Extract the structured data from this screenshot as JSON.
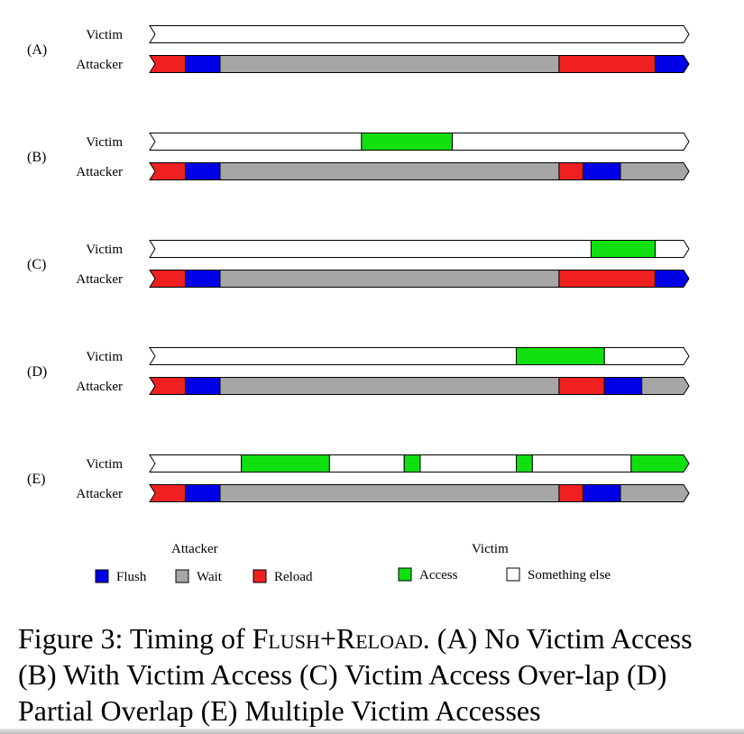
{
  "colors": {
    "flush": "#0000e6",
    "wait": "#a6a6a6",
    "reload": "#f02020",
    "access": "#10e010",
    "something_else": "#ffffff"
  },
  "row_labels": {
    "victim": "Victim",
    "attacker": "Attacker"
  },
  "timeline_length": 100,
  "diagrams": [
    {
      "id": "A",
      "label": "(A)",
      "victim": [
        {
          "kind": "something_else",
          "start": 0,
          "end": 100
        }
      ],
      "attacker": [
        {
          "kind": "reload",
          "start": 0,
          "end": 6
        },
        {
          "kind": "flush",
          "start": 6,
          "end": 12.5
        },
        {
          "kind": "wait",
          "start": 12.5,
          "end": 76
        },
        {
          "kind": "reload",
          "start": 76,
          "end": 94
        },
        {
          "kind": "flush",
          "start": 94,
          "end": 100
        }
      ]
    },
    {
      "id": "B",
      "label": "(B)",
      "victim": [
        {
          "kind": "something_else",
          "start": 0,
          "end": 39
        },
        {
          "kind": "access",
          "start": 39,
          "end": 56
        },
        {
          "kind": "something_else",
          "start": 56,
          "end": 100
        }
      ],
      "attacker": [
        {
          "kind": "reload",
          "start": 0,
          "end": 6
        },
        {
          "kind": "flush",
          "start": 6,
          "end": 12.5
        },
        {
          "kind": "wait",
          "start": 12.5,
          "end": 76
        },
        {
          "kind": "reload",
          "start": 76,
          "end": 80.5
        },
        {
          "kind": "flush",
          "start": 80.5,
          "end": 87.5
        },
        {
          "kind": "wait",
          "start": 87.5,
          "end": 100
        }
      ]
    },
    {
      "id": "C",
      "label": "(C)",
      "victim": [
        {
          "kind": "something_else",
          "start": 0,
          "end": 82
        },
        {
          "kind": "access",
          "start": 82,
          "end": 94
        },
        {
          "kind": "something_else",
          "start": 94,
          "end": 100
        }
      ],
      "attacker": [
        {
          "kind": "reload",
          "start": 0,
          "end": 6
        },
        {
          "kind": "flush",
          "start": 6,
          "end": 12.5
        },
        {
          "kind": "wait",
          "start": 12.5,
          "end": 76
        },
        {
          "kind": "reload",
          "start": 76,
          "end": 94
        },
        {
          "kind": "flush",
          "start": 94,
          "end": 100
        }
      ]
    },
    {
      "id": "D",
      "label": "(D)",
      "victim": [
        {
          "kind": "something_else",
          "start": 0,
          "end": 68
        },
        {
          "kind": "access",
          "start": 68,
          "end": 84.5
        },
        {
          "kind": "something_else",
          "start": 84.5,
          "end": 100
        }
      ],
      "attacker": [
        {
          "kind": "reload",
          "start": 0,
          "end": 6
        },
        {
          "kind": "flush",
          "start": 6,
          "end": 12.5
        },
        {
          "kind": "wait",
          "start": 12.5,
          "end": 76
        },
        {
          "kind": "reload",
          "start": 76,
          "end": 84.5
        },
        {
          "kind": "flush",
          "start": 84.5,
          "end": 91.5
        },
        {
          "kind": "wait",
          "start": 91.5,
          "end": 100
        }
      ]
    },
    {
      "id": "E",
      "label": "(E)",
      "victim": [
        {
          "kind": "something_else",
          "start": 0,
          "end": 16.5
        },
        {
          "kind": "access",
          "start": 16.5,
          "end": 33
        },
        {
          "kind": "something_else",
          "start": 33,
          "end": 47
        },
        {
          "kind": "access",
          "start": 47,
          "end": 50
        },
        {
          "kind": "something_else",
          "start": 50,
          "end": 68
        },
        {
          "kind": "access",
          "start": 68,
          "end": 71
        },
        {
          "kind": "something_else",
          "start": 71,
          "end": 89.5
        },
        {
          "kind": "access",
          "start": 89.5,
          "end": 100
        }
      ],
      "attacker": [
        {
          "kind": "reload",
          "start": 0,
          "end": 6
        },
        {
          "kind": "flush",
          "start": 6,
          "end": 12.5
        },
        {
          "kind": "wait",
          "start": 12.5,
          "end": 76
        },
        {
          "kind": "reload",
          "start": 76,
          "end": 80.5
        },
        {
          "kind": "flush",
          "start": 80.5,
          "end": 87.5
        },
        {
          "kind": "wait",
          "start": 87.5,
          "end": 100
        }
      ]
    }
  ],
  "legend": {
    "attacker_title": "Attacker",
    "victim_title": "Victim",
    "attacker_items": [
      {
        "kind": "flush",
        "label": "Flush"
      },
      {
        "kind": "wait",
        "label": "Wait"
      },
      {
        "kind": "reload",
        "label": "Reload"
      }
    ],
    "victim_items": [
      {
        "kind": "access",
        "label": "Access"
      },
      {
        "kind": "something_else",
        "label": "Something else"
      }
    ]
  },
  "caption": {
    "prefix": "Figure 3: Timing of ",
    "name": "Flush+Reload",
    "rest": ". (A) No Victim Access (B) With Victim Access (C) Victim Access Over-lap (D) Partial Overlap (E) Multiple Victim Accesses"
  }
}
